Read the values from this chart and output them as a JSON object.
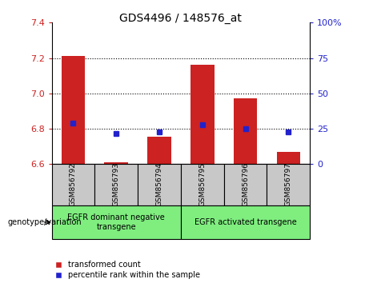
{
  "title": "GDS4496 / 148576_at",
  "samples": [
    "GSM856792",
    "GSM856793",
    "GSM856794",
    "GSM856795",
    "GSM856796",
    "GSM856797"
  ],
  "red_bar_tops": [
    7.21,
    6.61,
    6.753,
    7.16,
    6.97,
    6.67
  ],
  "blue_square_y": [
    6.832,
    6.772,
    6.782,
    6.822,
    6.802,
    6.782
  ],
  "bar_base": 6.6,
  "ylim": [
    6.6,
    7.4
  ],
  "yticks_left": [
    6.6,
    6.8,
    7.0,
    7.2,
    7.4
  ],
  "yticks_right": [
    0,
    25,
    50,
    75,
    100
  ],
  "red_color": "#CC2222",
  "blue_color": "#2222CC",
  "group1_label": "EGFR dominant negative\ntransgene",
  "group2_label": "EGFR activated transgene",
  "group1_indices": [
    0,
    1,
    2
  ],
  "group2_indices": [
    3,
    4,
    5
  ],
  "genotype_label": "genotype/variation",
  "legend1": "transformed count",
  "legend2": "percentile rank within the sample",
  "group_bg_color": "#7FEE7F",
  "sample_bg_color": "#C8C8C8",
  "bar_width": 0.55
}
